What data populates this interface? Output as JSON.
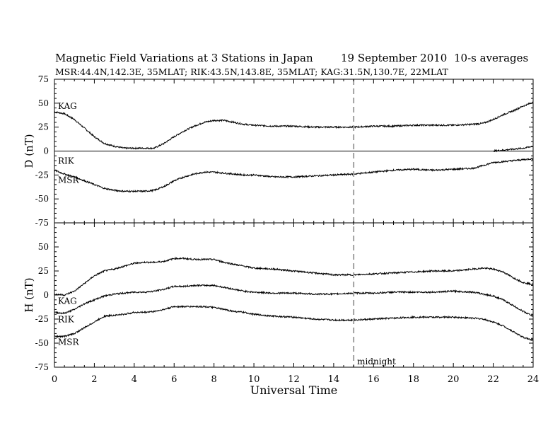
{
  "header": {
    "title": "Magnetic Field Variations at 3 Stations in Japan",
    "date": "19 September 2010",
    "averaging": "10-s averages",
    "stations": "MSR:44.4N,142.3E, 35MLAT;  RIK:43.5N,143.8E, 35MLAT;  KAG:31.5N,130.7E, 22MLAT"
  },
  "chart_data": [
    {
      "type": "line",
      "panel": "D",
      "ylabel": "D (nT)",
      "ylim": [
        -75,
        75
      ],
      "yticks": [
        "75",
        "50",
        "25",
        "0",
        "-25",
        "-50",
        "-75"
      ],
      "x": [
        0,
        0.5,
        1,
        1.5,
        2,
        2.5,
        3,
        3.5,
        4,
        4.5,
        5,
        5.5,
        6,
        6.5,
        7,
        7.5,
        8,
        8.5,
        9,
        9.5,
        10,
        11,
        12,
        13,
        14,
        15,
        16,
        17,
        18,
        19,
        20,
        21,
        21.5,
        22,
        22.5,
        23,
        23.5,
        24
      ],
      "series": [
        {
          "name": "KAG",
          "values": [
            41,
            39,
            33,
            24,
            15,
            8,
            5,
            3,
            3,
            3,
            3,
            8,
            15,
            21,
            26,
            30,
            32,
            32,
            30,
            28,
            27,
            26,
            26,
            25,
            25,
            25,
            26,
            26,
            27,
            27,
            27,
            28,
            29,
            33,
            38,
            42,
            47,
            51
          ]
        },
        {
          "name": "RIK",
          "values": [
            null,
            null,
            null,
            null,
            null,
            null,
            null,
            null,
            null,
            null,
            null,
            null,
            null,
            null,
            null,
            null,
            null,
            null,
            null,
            null,
            null,
            null,
            null,
            null,
            null,
            null,
            null,
            null,
            null,
            null,
            null,
            null,
            null,
            0,
            1,
            2,
            3,
            5
          ]
        },
        {
          "name": "MSR",
          "values": [
            -20,
            -24,
            -27,
            -31,
            -35,
            -39,
            -41,
            -42,
            -42,
            -42,
            -41,
            -37,
            -31,
            -27,
            -24,
            -22,
            -22,
            -23,
            -24,
            -25,
            -25,
            -27,
            -27,
            -26,
            -25,
            -24,
            -22,
            -20,
            -19,
            -20,
            -19,
            -18,
            -15,
            -12,
            -11,
            -10,
            -9,
            -8
          ]
        }
      ],
      "line_labels": [
        "KAG",
        "RIK",
        "MSR"
      ]
    },
    {
      "type": "line",
      "panel": "H",
      "ylabel": "H (nT)",
      "ylim": [
        -75,
        75
      ],
      "yticks": [
        "50",
        "25",
        "0",
        "-25",
        "-50",
        "-75"
      ],
      "x": [
        0,
        0.5,
        1,
        1.5,
        2,
        2.5,
        3,
        3.5,
        4,
        4.5,
        5,
        5.5,
        6,
        6.5,
        7,
        7.5,
        8,
        8.5,
        9,
        9.5,
        10,
        11,
        12,
        13,
        14,
        15,
        16,
        17,
        18,
        19,
        20,
        21,
        21.5,
        22,
        22.5,
        23,
        23.5,
        24
      ],
      "series": [
        {
          "name": "KAG",
          "values": [
            1,
            0,
            4,
            12,
            20,
            25,
            27,
            30,
            33,
            34,
            34,
            35,
            38,
            38,
            37,
            37,
            37,
            34,
            32,
            30,
            28,
            27,
            25,
            23,
            21,
            21,
            22,
            23,
            24,
            25,
            25,
            27,
            28,
            27,
            24,
            18,
            13,
            11
          ]
        },
        {
          "name": "RIK",
          "values": [
            -18,
            -19,
            -15,
            -9,
            -5,
            -1,
            1,
            2,
            3,
            3,
            4,
            6,
            9,
            9,
            10,
            10,
            10,
            8,
            6,
            4,
            3,
            2,
            2,
            1,
            1,
            2,
            2,
            3,
            3,
            3,
            4,
            3,
            1,
            -1,
            -5,
            -11,
            -17,
            -22
          ]
        },
        {
          "name": "MSR",
          "values": [
            -43,
            -43,
            -40,
            -34,
            -28,
            -22,
            -21,
            -20,
            -18,
            -18,
            -17,
            -15,
            -12,
            -12,
            -12,
            -12,
            -13,
            -15,
            -17,
            -18,
            -20,
            -22,
            -23,
            -25,
            -26,
            -26,
            -25,
            -24,
            -23,
            -23,
            -23,
            -24,
            -25,
            -28,
            -32,
            -38,
            -44,
            -47
          ]
        }
      ],
      "line_labels": [
        "KAG",
        "RIK",
        "MSR"
      ]
    }
  ],
  "x_axis": {
    "xlabel": "Universal Time",
    "xlim": [
      0,
      24
    ],
    "xticks": [
      "0",
      "2",
      "4",
      "6",
      "8",
      "10",
      "12",
      "14",
      "16",
      "18",
      "20",
      "22",
      "24"
    ]
  },
  "marker": {
    "x": 15,
    "label": "midnight"
  }
}
